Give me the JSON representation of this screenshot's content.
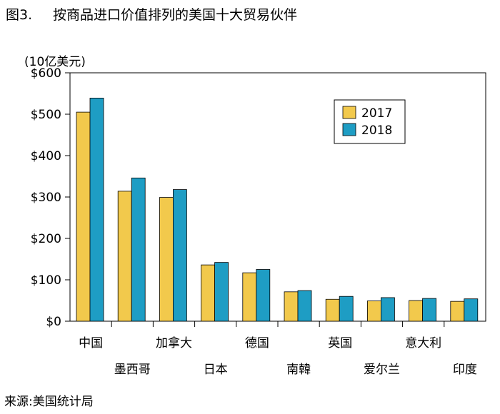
{
  "figure": {
    "number": "图3.",
    "title": "按商品进口价值排列的美国十大贸易伙伴",
    "source": "来源:美国统计局"
  },
  "colors": {
    "2017": "#f2c94c",
    "2018": "#1e9dc4",
    "axis": "#000000",
    "grid": "#000000"
  },
  "chart_data": {
    "type": "bar",
    "unit_label": "(10亿美元)",
    "categories": [
      "中国",
      "墨西哥",
      "加拿大",
      "日本",
      "德国",
      "南韓",
      "英国",
      "爱尔兰",
      "意大利",
      "印度"
    ],
    "series": [
      {
        "name": "2017",
        "values": [
          505,
          314,
          299,
          136,
          117,
          71,
          53,
          49,
          50,
          48
        ]
      },
      {
        "name": "2018",
        "values": [
          539,
          346,
          318,
          142,
          125,
          74,
          60,
          57,
          55,
          54
        ]
      }
    ],
    "ylim": [
      0,
      600
    ],
    "yticks": [
      0,
      100,
      200,
      300,
      400,
      500,
      600
    ],
    "ytick_labels": [
      "$0",
      "$100",
      "$200",
      "$300",
      "$400",
      "$500",
      "$600"
    ],
    "legend": "top-right",
    "grid": false
  }
}
